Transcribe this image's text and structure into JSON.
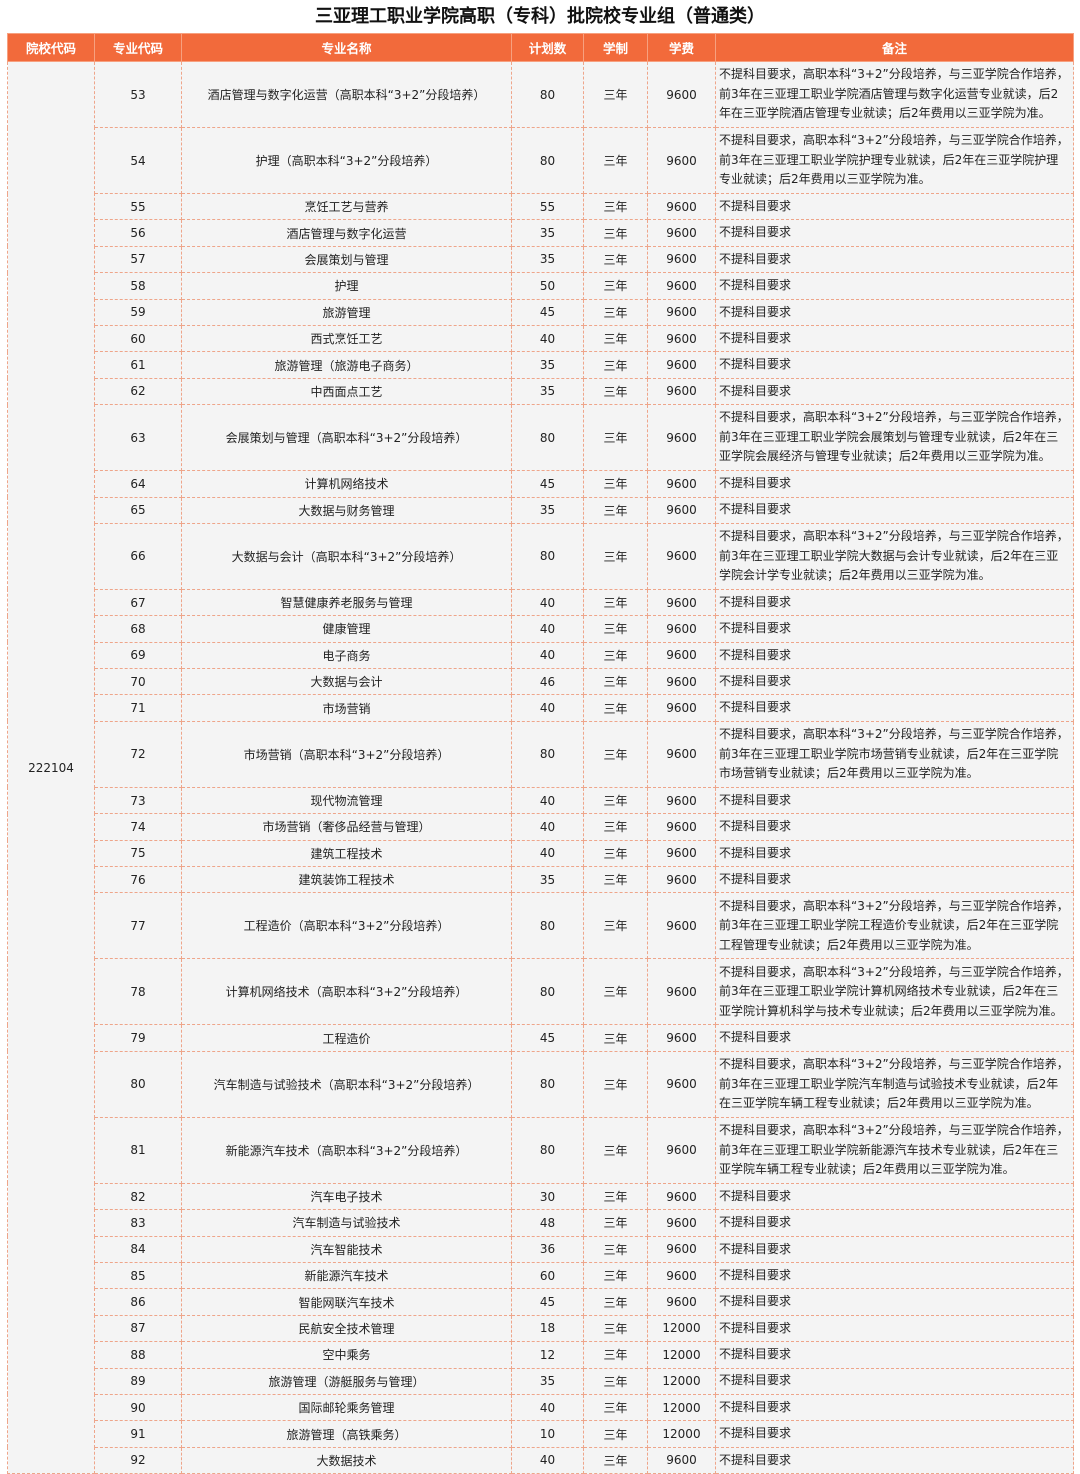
{
  "title": "三亚理工职业学院高职（专科）批院校专业组（普通类）",
  "headers": [
    "院校代码",
    "专业代码",
    "专业名称",
    "计划数",
    "学制",
    "学费",
    "备注"
  ],
  "school_code": "222104",
  "rows": [
    [
      "53",
      "酒店管理与数字化运营（高职本科“3+2”分段培养）",
      "80",
      "三年",
      "9600",
      "不提科目要求，高职本科“3+2”分段培养，与三亚学院合作培养，前3年在三亚理工职业学院酒店管理与数字化运营专业就读，后2年在三亚学院酒店管理专业就读；后2年费用以三亚学院为准。"
    ],
    [
      "54",
      "护理（高职本科“3+2”分段培养）",
      "80",
      "三年",
      "9600",
      "不提科目要求，高职本科“3+2”分段培养，与三亚学院合作培养，前3年在三亚理工职业学院护理专业就读，后2年在三亚学院护理专业就读；后2年费用以三亚学院为准。"
    ],
    [
      "55",
      "烹饪工艺与营养",
      "55",
      "三年",
      "9600",
      "不提科目要求"
    ],
    [
      "56",
      "酒店管理与数字化运营",
      "35",
      "三年",
      "9600",
      "不提科目要求"
    ],
    [
      "57",
      "会展策划与管理",
      "35",
      "三年",
      "9600",
      "不提科目要求"
    ],
    [
      "58",
      "护理",
      "50",
      "三年",
      "9600",
      "不提科目要求"
    ],
    [
      "59",
      "旅游管理",
      "45",
      "三年",
      "9600",
      "不提科目要求"
    ],
    [
      "60",
      "西式烹饪工艺",
      "40",
      "三年",
      "9600",
      "不提科目要求"
    ],
    [
      "61",
      "旅游管理（旅游电子商务）",
      "35",
      "三年",
      "9600",
      "不提科目要求"
    ],
    [
      "62",
      "中西面点工艺",
      "35",
      "三年",
      "9600",
      "不提科目要求"
    ],
    [
      "63",
      "会展策划与管理（高职本科“3+2”分段培养）",
      "80",
      "三年",
      "9600",
      "不提科目要求，高职本科“3+2”分段培养，与三亚学院合作培养，前3年在三亚理工职业学院会展策划与管理专业就读，后2年在三亚学院会展经济与管理专业就读；后2年费用以三亚学院为准。"
    ],
    [
      "64",
      "计算机网络技术",
      "45",
      "三年",
      "9600",
      "不提科目要求"
    ],
    [
      "65",
      "大数据与财务管理",
      "35",
      "三年",
      "9600",
      "不提科目要求"
    ],
    [
      "66",
      "大数据与会计（高职本科“3+2”分段培养）",
      "80",
      "三年",
      "9600",
      "不提科目要求，高职本科“3+2”分段培养，与三亚学院合作培养，前3年在三亚理工职业学院大数据与会计专业就读，后2年在三亚学院会计学专业就读；后2年费用以三亚学院为准。"
    ],
    [
      "67",
      "智慧健康养老服务与管理",
      "40",
      "三年",
      "9600",
      "不提科目要求"
    ],
    [
      "68",
      "健康管理",
      "40",
      "三年",
      "9600",
      "不提科目要求"
    ],
    [
      "69",
      "电子商务",
      "40",
      "三年",
      "9600",
      "不提科目要求"
    ],
    [
      "70",
      "大数据与会计",
      "46",
      "三年",
      "9600",
      "不提科目要求"
    ],
    [
      "71",
      "市场营销",
      "40",
      "三年",
      "9600",
      "不提科目要求"
    ],
    [
      "72",
      "市场营销（高职本科“3+2”分段培养）",
      "80",
      "三年",
      "9600",
      "不提科目要求，高职本科“3+2”分段培养，与三亚学院合作培养，前3年在三亚理工职业学院市场营销专业就读，后2年在三亚学院市场营销专业就读；后2年费用以三亚学院为准。"
    ],
    [
      "73",
      "现代物流管理",
      "40",
      "三年",
      "9600",
      "不提科目要求"
    ],
    [
      "74",
      "市场营销（奢侈品经营与管理）",
      "40",
      "三年",
      "9600",
      "不提科目要求"
    ],
    [
      "75",
      "建筑工程技术",
      "40",
      "三年",
      "9600",
      "不提科目要求"
    ],
    [
      "76",
      "建筑装饰工程技术",
      "35",
      "三年",
      "9600",
      "不提科目要求"
    ],
    [
      "77",
      "工程造价（高职本科“3+2”分段培养）",
      "80",
      "三年",
      "9600",
      "不提科目要求，高职本科“3+2”分段培养，与三亚学院合作培养，前3年在三亚理工职业学院工程造价专业就读，后2年在三亚学院工程管理专业就读；后2年费用以三亚学院为准。"
    ],
    [
      "78",
      "计算机网络技术（高职本科“3+2”分段培养）",
      "80",
      "三年",
      "9600",
      "不提科目要求，高职本科“3+2”分段培养，与三亚学院合作培养，前3年在三亚理工职业学院计算机网络技术专业就读，后2年在三亚学院计算机科学与技术专业就读；后2年费用以三亚学院为准。"
    ],
    [
      "79",
      "工程造价",
      "45",
      "三年",
      "9600",
      "不提科目要求"
    ],
    [
      "80",
      "汽车制造与试验技术（高职本科“3+2”分段培养）",
      "80",
      "三年",
      "9600",
      "不提科目要求，高职本科“3+2”分段培养，与三亚学院合作培养，前3年在三亚理工职业学院汽车制造与试验技术专业就读，后2年在三亚学院车辆工程专业就读；后2年费用以三亚学院为准。"
    ],
    [
      "81",
      "新能源汽车技术（高职本科“3+2”分段培养）",
      "80",
      "三年",
      "9600",
      "不提科目要求，高职本科“3+2”分段培养，与三亚学院合作培养，前3年在三亚理工职业学院新能源汽车技术专业就读，后2年在三亚学院车辆工程专业就读；后2年费用以三亚学院为准。"
    ],
    [
      "82",
      "汽车电子技术",
      "30",
      "三年",
      "9600",
      "不提科目要求"
    ],
    [
      "83",
      "汽车制造与试验技术",
      "48",
      "三年",
      "9600",
      "不提科目要求"
    ],
    [
      "84",
      "汽车智能技术",
      "36",
      "三年",
      "9600",
      "不提科目要求"
    ],
    [
      "85",
      "新能源汽车技术",
      "60",
      "三年",
      "9600",
      "不提科目要求"
    ],
    [
      "86",
      "智能网联汽车技术",
      "45",
      "三年",
      "9600",
      "不提科目要求"
    ],
    [
      "87",
      "民航安全技术管理",
      "18",
      "三年",
      "12000",
      "不提科目要求"
    ],
    [
      "88",
      "空中乘务",
      "12",
      "三年",
      "12000",
      "不提科目要求"
    ],
    [
      "89",
      "旅游管理（游艇服务与管理）",
      "35",
      "三年",
      "12000",
      "不提科目要求"
    ],
    [
      "90",
      "国际邮轮乘务管理",
      "40",
      "三年",
      "12000",
      "不提科目要求"
    ],
    [
      "91",
      "旅游管理（高铁乘务）",
      "10",
      "三年",
      "12000",
      "不提科目要求"
    ],
    [
      "92",
      "大数据技术",
      "40",
      "三年",
      "9600",
      "不提科目要求"
    ]
  ]
}
